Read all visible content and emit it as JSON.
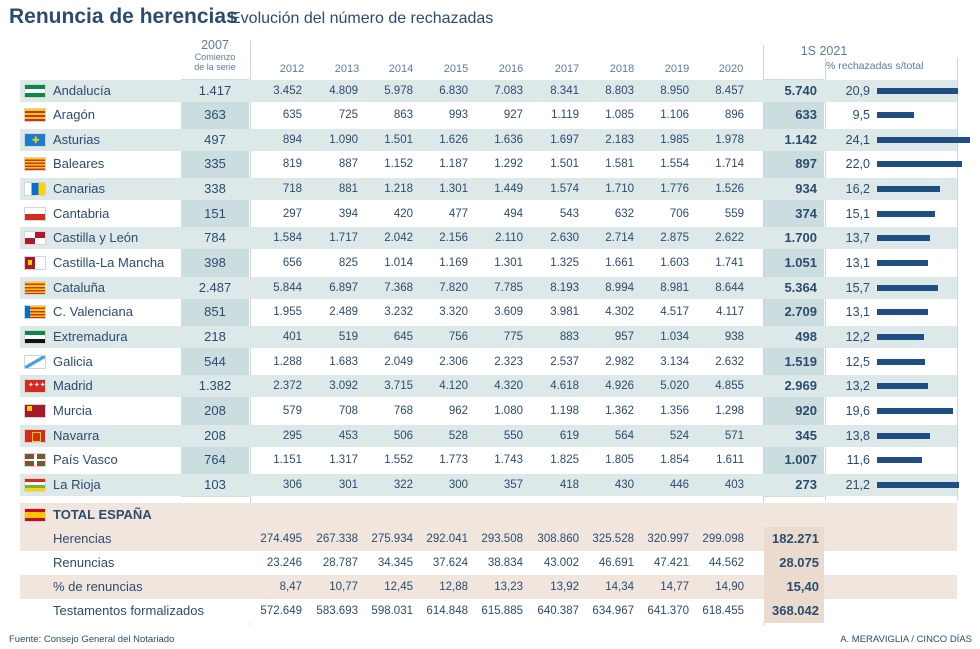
{
  "header": {
    "title": "Renuncia de herencias",
    "subtitle": "Evolución del número de rechazadas",
    "col2007": "2007",
    "col2007_note1": "Comienzo",
    "col2007_note2": "de la serie",
    "years": [
      "2012",
      "2013",
      "2014",
      "2015",
      "2016",
      "2017",
      "2018",
      "2019",
      "2020"
    ],
    "col2021": "1S 2021",
    "col_pct": "% rechazadas s/total"
  },
  "chart_data": {
    "type": "table",
    "title": "Renuncia de herencias",
    "subtitle": "Evolución del número de rechazadas",
    "rows": [
      {
        "name": "Andalucía",
        "flag": "andalucia-flag",
        "v2007": "1.417",
        "years": [
          "3.452",
          "4.809",
          "5.978",
          "6.830",
          "7.083",
          "8.341",
          "8.803",
          "8.950",
          "8.457"
        ],
        "v2021": "5.740",
        "pct_label": "20,9",
        "pct": 20.9
      },
      {
        "name": "Aragón",
        "flag": "aragon-flag",
        "v2007": "363",
        "years": [
          "635",
          "725",
          "863",
          "993",
          "927",
          "1.119",
          "1.085",
          "1.106",
          "896"
        ],
        "v2021": "633",
        "pct_label": "9,5",
        "pct": 9.5
      },
      {
        "name": "Asturias",
        "flag": "asturias-flag",
        "v2007": "497",
        "years": [
          "894",
          "1.090",
          "1.501",
          "1.626",
          "1.636",
          "1.697",
          "2.183",
          "1.985",
          "1.978"
        ],
        "v2021": "1.142",
        "pct_label": "24,1",
        "pct": 24.1
      },
      {
        "name": "Baleares",
        "flag": "baleares-flag",
        "v2007": "335",
        "years": [
          "819",
          "887",
          "1.152",
          "1.187",
          "1.292",
          "1.501",
          "1.581",
          "1.554",
          "1.714"
        ],
        "v2021": "897",
        "pct_label": "22,0",
        "pct": 22.0
      },
      {
        "name": "Canarias",
        "flag": "canarias-flag",
        "v2007": "338",
        "years": [
          "718",
          "881",
          "1.218",
          "1.301",
          "1.449",
          "1.574",
          "1.710",
          "1.776",
          "1.526"
        ],
        "v2021": "934",
        "pct_label": "16,2",
        "pct": 16.2
      },
      {
        "name": "Cantabria",
        "flag": "cantabria-flag",
        "v2007": "151",
        "years": [
          "297",
          "394",
          "420",
          "477",
          "494",
          "543",
          "632",
          "706",
          "559"
        ],
        "v2021": "374",
        "pct_label": "15,1",
        "pct": 15.1
      },
      {
        "name": "Castilla y León",
        "flag": "castilla-leon-flag",
        "v2007": "784",
        "years": [
          "1.584",
          "1.717",
          "2.042",
          "2.156",
          "2.110",
          "2.630",
          "2.714",
          "2.875",
          "2.622"
        ],
        "v2021": "1.700",
        "pct_label": "13,7",
        "pct": 13.7
      },
      {
        "name": "Castilla-La Mancha",
        "flag": "castilla-la-mancha-flag",
        "v2007": "398",
        "years": [
          "656",
          "825",
          "1.014",
          "1.169",
          "1.301",
          "1.325",
          "1.661",
          "1.603",
          "1.741"
        ],
        "v2021": "1.051",
        "pct_label": "13,1",
        "pct": 13.1
      },
      {
        "name": "Cataluña",
        "flag": "cataluna-flag",
        "v2007": "2.487",
        "years": [
          "5.844",
          "6.897",
          "7.368",
          "7.820",
          "7.785",
          "8.193",
          "8.994",
          "8.981",
          "8.644"
        ],
        "v2021": "5.364",
        "pct_label": "15,7",
        "pct": 15.7
      },
      {
        "name": "C. Valenciana",
        "flag": "valenciana-flag",
        "v2007": "851",
        "years": [
          "1.955",
          "2.489",
          "3.232",
          "3.320",
          "3.609",
          "3.981",
          "4.302",
          "4.517",
          "4.117"
        ],
        "v2021": "2.709",
        "pct_label": "13,1",
        "pct": 13.1
      },
      {
        "name": "Extremadura",
        "flag": "extremadura-flag",
        "v2007": "218",
        "years": [
          "401",
          "519",
          "645",
          "756",
          "775",
          "883",
          "957",
          "1.034",
          "938"
        ],
        "v2021": "498",
        "pct_label": "12,2",
        "pct": 12.2
      },
      {
        "name": "Galicia",
        "flag": "galicia-flag",
        "v2007": "544",
        "years": [
          "1.288",
          "1.683",
          "2.049",
          "2.306",
          "2.323",
          "2.537",
          "2.982",
          "3.134",
          "2.632"
        ],
        "v2021": "1.519",
        "pct_label": "12,5",
        "pct": 12.5
      },
      {
        "name": "Madrid",
        "flag": "madrid-flag",
        "v2007": "1.382",
        "years": [
          "2.372",
          "3.092",
          "3.715",
          "4.120",
          "4.320",
          "4.618",
          "4.926",
          "5.020",
          "4.855"
        ],
        "v2021": "2.969",
        "pct_label": "13,2",
        "pct": 13.2
      },
      {
        "name": "Murcia",
        "flag": "murcia-flag",
        "v2007": "208",
        "years": [
          "579",
          "708",
          "768",
          "962",
          "1.080",
          "1.198",
          "1.362",
          "1.356",
          "1.298"
        ],
        "v2021": "920",
        "pct_label": "19,6",
        "pct": 19.6
      },
      {
        "name": "Navarra",
        "flag": "navarra-flag",
        "v2007": "208",
        "years": [
          "295",
          "453",
          "506",
          "528",
          "550",
          "619",
          "564",
          "524",
          "571"
        ],
        "v2021": "345",
        "pct_label": "13,8",
        "pct": 13.8
      },
      {
        "name": "País Vasco",
        "flag": "pais-vasco-flag",
        "v2007": "764",
        "years": [
          "1.151",
          "1.317",
          "1.552",
          "1.773",
          "1.743",
          "1.825",
          "1.805",
          "1.854",
          "1.611"
        ],
        "v2021": "1.007",
        "pct_label": "11,6",
        "pct": 11.6
      },
      {
        "name": "La Rioja",
        "flag": "la-rioja-flag",
        "v2007": "103",
        "years": [
          "306",
          "301",
          "322",
          "300",
          "357",
          "418",
          "430",
          "446",
          "403"
        ],
        "v2021": "273",
        "pct_label": "21,2",
        "pct": 21.2
      }
    ],
    "pct_axis_max": 24.1
  },
  "totals": {
    "label": "TOTAL ESPAÑA",
    "flag": "spain-flag",
    "rows": [
      {
        "name": "Herencias",
        "years": [
          "274.495",
          "267.338",
          "275.934",
          "292.041",
          "293.508",
          "308.860",
          "325.528",
          "320.997",
          "299.098"
        ],
        "v2021": "182.271"
      },
      {
        "name": "Renuncias",
        "years": [
          "23.246",
          "28.787",
          "34.345",
          "37.624",
          "38.834",
          "43.002",
          "46.691",
          "47.421",
          "44.562"
        ],
        "v2021": "28.075"
      },
      {
        "name": "% de renuncias",
        "years": [
          "8,47",
          "10,77",
          "12,45",
          "12,88",
          "13,23",
          "13,92",
          "14,34",
          "14,77",
          "14,90"
        ],
        "v2021": "15,40"
      },
      {
        "name": "Testamentos formalizados",
        "years": [
          "572.649",
          "583.693",
          "598.031",
          "614.848",
          "615.885",
          "640.387",
          "634.967",
          "641.370",
          "618.455"
        ],
        "v2021": "368.042"
      }
    ]
  },
  "footer": {
    "source": "Fuente: Consejo General del Notariado",
    "credit": "A. MERAVIGLIA / CINCO DÍAS"
  },
  "colors": {
    "text": "#2b4c6f",
    "row_shade": "#dde8e9",
    "col_highlight": "#ccdde0",
    "bar": "#1f4e83",
    "total_shade": "#f1e6dd",
    "total_highlight": "#eadbce"
  }
}
